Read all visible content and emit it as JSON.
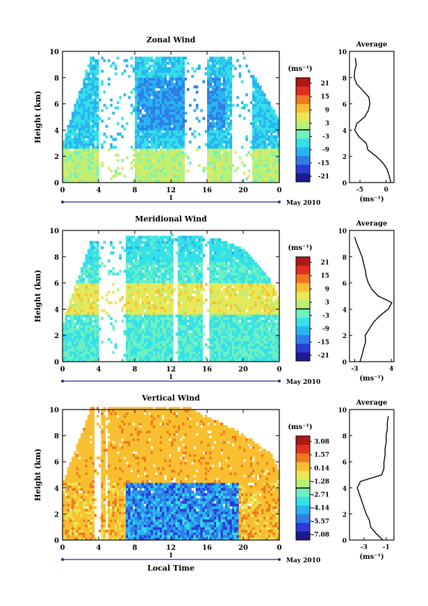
{
  "chart_data": [
    {
      "type": "heatmap",
      "title": "Zonal Wind",
      "xlabel": "",
      "ylabel": "Height (km)",
      "xticks": [
        "0",
        "4",
        "8",
        "12",
        "16",
        "20",
        "0"
      ],
      "yticks": [
        "0",
        "2",
        "4",
        "6",
        "8",
        "10"
      ],
      "xlim": [
        0,
        24
      ],
      "ylim": [
        0,
        10
      ],
      "date_label": "May 2010",
      "day_label": "1",
      "colorbar": {
        "unit": "(ms⁻¹)",
        "ticks": [
          "21",
          "15",
          "9",
          "3",
          "-3",
          "-9",
          "-15",
          "-21"
        ],
        "range": [
          -24,
          24
        ]
      },
      "field": {
        "kind": "zonal",
        "gaps": [
          [
            3.8,
            7.8
          ],
          [
            13.5,
            15.8
          ],
          [
            18.6,
            20.8
          ]
        ],
        "top_km": [
          3.2,
          9.5,
          9.5,
          9.5,
          9.6,
          9.5,
          9.4,
          5.8,
          4.5
        ],
        "top_hours": [
          0,
          3,
          8,
          12,
          14,
          17,
          20,
          23,
          24
        ]
      },
      "side_profile": {
        "title": "Average",
        "xlabel": "(ms⁻¹)",
        "xticks": [
          "-5",
          "0"
        ],
        "xlim": [
          -7,
          1.5
        ],
        "yticks": [
          "0",
          "2",
          "4",
          "6",
          "8",
          "10"
        ],
        "heights_km": [
          0.0,
          0.5,
          1.0,
          1.5,
          2.0,
          2.5,
          3.0,
          3.5,
          4.0,
          4.5,
          5.0,
          5.5,
          6.0,
          6.5,
          7.0,
          7.5,
          8.0,
          8.5,
          9.0,
          9.5
        ],
        "values": [
          0.9,
          0.6,
          0.2,
          -0.6,
          -1.9,
          -3.5,
          -3.8,
          -5.2,
          -6.0,
          -5.6,
          -4.1,
          -3.4,
          -3.1,
          -3.3,
          -4.4,
          -5.6,
          -6.1,
          -6.0,
          -5.7,
          -5.9
        ]
      }
    },
    {
      "type": "heatmap",
      "title": "Meridional Wind",
      "xlabel": "",
      "ylabel": "Height (km)",
      "xticks": [
        "0",
        "4",
        "8",
        "12",
        "16",
        "20",
        "0"
      ],
      "yticks": [
        "0",
        "2",
        "4",
        "6",
        "8",
        "10"
      ],
      "xlim": [
        0,
        24
      ],
      "ylim": [
        0,
        10
      ],
      "date_label": "May 2010",
      "day_label": "1",
      "colorbar": {
        "unit": "(ms⁻¹)",
        "ticks": [
          "21",
          "15",
          "9",
          "3",
          "-3",
          "-9",
          "-15",
          "-21"
        ],
        "range": [
          -24,
          24
        ]
      },
      "field": {
        "kind": "meridional",
        "gaps": [
          [
            3.8,
            6.8
          ],
          [
            12.2,
            12.7
          ],
          [
            15.5,
            16.2
          ]
        ],
        "top_km": [
          3.2,
          9.0,
          9.5,
          9.6,
          9.5,
          9.3,
          8.5,
          6.0,
          4.5
        ],
        "top_hours": [
          0,
          3,
          8,
          12,
          14,
          17,
          20,
          23,
          24
        ]
      },
      "side_profile": {
        "title": "Average",
        "xlabel": "(ms⁻¹)",
        "xticks": [
          "-3",
          "4"
        ],
        "xlim": [
          -4,
          4.5
        ],
        "yticks": [
          "0",
          "2",
          "4",
          "6",
          "8",
          "10"
        ],
        "heights_km": [
          0.0,
          0.5,
          1.0,
          1.5,
          2.0,
          2.5,
          3.0,
          3.5,
          4.0,
          4.5,
          5.0,
          5.5,
          6.0,
          6.5,
          7.0,
          7.5,
          8.0,
          8.5,
          9.0,
          9.5
        ],
        "values": [
          -2.0,
          -1.6,
          -1.3,
          -0.9,
          -1.0,
          -0.2,
          0.6,
          1.8,
          3.4,
          4.1,
          1.5,
          0.3,
          -0.4,
          -0.8,
          -1.0,
          -1.3,
          -1.6,
          -2.1,
          -2.6,
          -3.0
        ]
      }
    },
    {
      "type": "heatmap",
      "title": "Vertical Wind",
      "xlabel": "Local Time",
      "ylabel": "Height (km)",
      "xticks": [
        "0",
        "4",
        "8",
        "12",
        "16",
        "20",
        "0"
      ],
      "yticks": [
        "0",
        "2",
        "4",
        "6",
        "8",
        "10"
      ],
      "xlim": [
        0,
        24
      ],
      "ylim": [
        0,
        10
      ],
      "date_label": "May 2010",
      "day_label": "1",
      "colorbar": {
        "unit": "(ms⁻¹)",
        "ticks": [
          "3.08",
          "1.57",
          "0.14",
          "-1.28",
          "-2.71",
          "-4.14",
          "-5.57",
          "-7.08"
        ],
        "range": [
          -8,
          4
        ]
      },
      "field": {
        "kind": "vertical",
        "gaps": [
          [
            3.4,
            4.2
          ],
          [
            4.6,
            4.9
          ],
          [
            6.8,
            7.0
          ]
        ],
        "top_km": [
          4.5,
          10.0,
          10.0,
          10.0,
          10.0,
          9.0,
          8.0,
          6.5,
          5.0
        ],
        "top_hours": [
          0,
          3,
          8,
          12,
          14,
          17,
          20,
          23,
          24
        ]
      },
      "side_profile": {
        "title": "Average",
        "xlabel": "(ms⁻¹)",
        "xticks": [
          "-3",
          "-1"
        ],
        "xlim": [
          -4.3,
          -0.3
        ],
        "yticks": [
          "0",
          "2",
          "4",
          "6",
          "8",
          "10"
        ],
        "heights_km": [
          0.0,
          0.5,
          1.0,
          1.5,
          2.0,
          2.5,
          3.0,
          3.5,
          4.0,
          4.5,
          5.0,
          5.5,
          6.0,
          6.5,
          7.0,
          7.5,
          8.0,
          8.5,
          9.0,
          9.5
        ],
        "values": [
          -1.3,
          -1.9,
          -2.4,
          -2.5,
          -2.8,
          -3.0,
          -3.2,
          -3.4,
          -3.6,
          -3.3,
          -1.4,
          -1.2,
          -1.2,
          -1.1,
          -1.1,
          -1.0,
          -1.0,
          -0.9,
          -0.9,
          -0.8
        ]
      }
    }
  ],
  "colors": {
    "jet": [
      "#1e1a8c",
      "#2b3bd6",
      "#2f7ee8",
      "#29b4f0",
      "#35e0e8",
      "#6ef0c0",
      "#b8f078",
      "#e8e858",
      "#f8c030",
      "#f07820",
      "#e03020",
      "#b01818"
    ]
  }
}
